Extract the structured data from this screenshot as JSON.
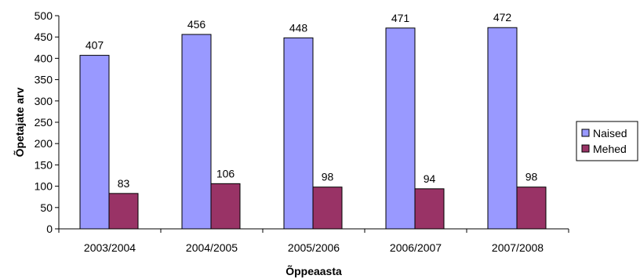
{
  "chart_data": {
    "type": "bar",
    "categories": [
      "2003/2004",
      "2004/2005",
      "2005/2006",
      "2006/2007",
      "2007/2008"
    ],
    "series": [
      {
        "name": "Naised",
        "values": [
          407,
          456,
          448,
          471,
          472
        ],
        "color": "#9999ff"
      },
      {
        "name": "Mehed",
        "values": [
          83,
          106,
          98,
          94,
          98
        ],
        "color": "#993366"
      }
    ],
    "xlabel": "Õppeaasta",
    "ylabel": "Õpetajate arv",
    "ylim": [
      0,
      500
    ],
    "yticks": [
      0,
      50,
      100,
      150,
      200,
      250,
      300,
      350,
      400,
      450,
      500
    ],
    "grid": false,
    "legend_position": "right"
  }
}
